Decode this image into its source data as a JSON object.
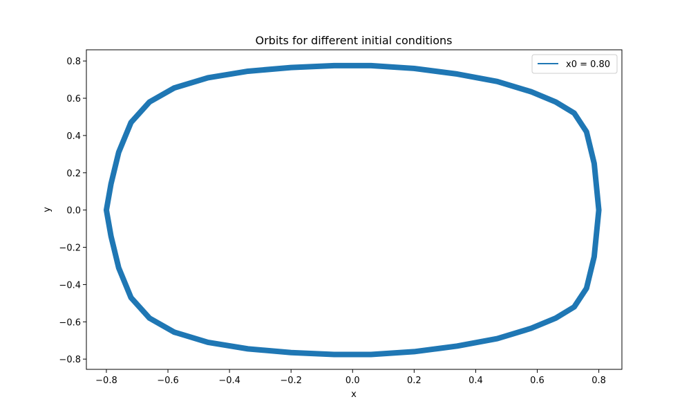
{
  "chart_data": {
    "type": "line",
    "title": "Orbits for different initial conditions",
    "xlabel": "x",
    "ylabel": "y",
    "xlim": [
      -0.865,
      0.875
    ],
    "ylim": [
      -0.855,
      0.86
    ],
    "xticks": [
      -0.8,
      -0.6,
      -0.4,
      -0.2,
      0.0,
      0.2,
      0.4,
      0.6,
      0.8
    ],
    "yticks": [
      -0.8,
      -0.6,
      -0.4,
      -0.2,
      0.0,
      0.2,
      0.4,
      0.6,
      0.8
    ],
    "xtick_labels": [
      "−0.8",
      "−0.6",
      "−0.4",
      "−0.2",
      "0.0",
      "0.2",
      "0.4",
      "0.6",
      "0.8"
    ],
    "ytick_labels": [
      "−0.8",
      "−0.6",
      "−0.4",
      "−0.2",
      "0.0",
      "0.2",
      "0.4",
      "0.6",
      "0.8"
    ],
    "grid": false,
    "legend_position": "top-right",
    "series": [
      {
        "name": "x0 = 0.80",
        "color": "#1f77b4",
        "x": [
          0.8,
          0.785,
          0.76,
          0.72,
          0.66,
          0.58,
          0.47,
          0.34,
          0.2,
          0.06,
          -0.06,
          -0.2,
          -0.34,
          -0.47,
          -0.58,
          -0.66,
          -0.72,
          -0.76,
          -0.785,
          -0.8,
          -0.785,
          -0.76,
          -0.72,
          -0.66,
          -0.58,
          -0.47,
          -0.34,
          -0.2,
          -0.06,
          0.06,
          0.2,
          0.34,
          0.47,
          0.58,
          0.66,
          0.72,
          0.76,
          0.785,
          0.8
        ],
        "y": [
          0.0,
          0.25,
          0.42,
          0.52,
          0.58,
          0.635,
          0.69,
          0.73,
          0.76,
          0.775,
          0.775,
          0.765,
          0.745,
          0.71,
          0.655,
          0.58,
          0.47,
          0.31,
          0.14,
          0.0,
          -0.14,
          -0.31,
          -0.47,
          -0.58,
          -0.655,
          -0.71,
          -0.745,
          -0.765,
          -0.775,
          -0.775,
          -0.76,
          -0.73,
          -0.69,
          -0.635,
          -0.58,
          -0.52,
          -0.42,
          -0.25,
          0.0
        ]
      }
    ]
  }
}
